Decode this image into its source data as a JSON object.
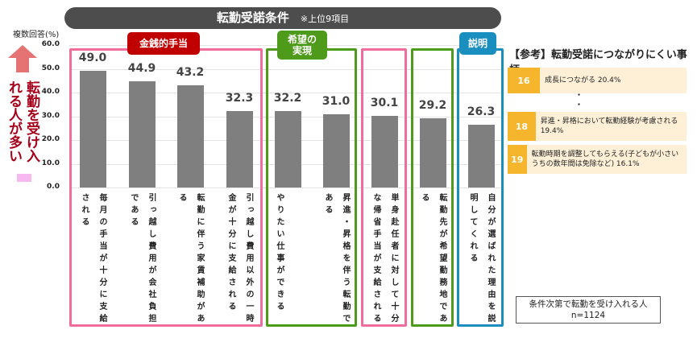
{
  "title": "転勤受諾条件",
  "title_note": "※上位9項目",
  "side_label": "転勤を受け入れる人が多い",
  "groups": [
    {
      "label": "金銭的手当",
      "color": "#c00000",
      "border": "#f06c9a"
    },
    {
      "label": "希望の実現",
      "color": "#4e9a1a",
      "border": "#4e9a1a"
    },
    {
      "label": "説明",
      "color": "#1a8fbf",
      "border": "#1a8fbf"
    }
  ],
  "reference": {
    "title": "【参考】転勤受諾につながりにくい事柄",
    "items": [
      {
        "rank": "16",
        "text": "成長につながる 20.4%"
      },
      {
        "rank": "18",
        "text": "昇進・昇格において転勤経験が考慮される 19.4%"
      },
      {
        "rank": "19",
        "text": "転勤時期を調整してもらえる(子どもが小さいうちの数年間は免除など) 16.1%"
      }
    ],
    "ellipsis": "・ ・ ・"
  },
  "sample": {
    "line1": "条件次第で転勤を受け入れる人",
    "line2": "n=1124"
  },
  "chart_data": {
    "type": "bar",
    "ylabel": "複数回答(%)",
    "ylim": [
      0,
      60
    ],
    "yticks": [
      "0.0",
      "10.0",
      "20.0",
      "30.0",
      "40.0",
      "50.0",
      "60.0"
    ],
    "grid": true,
    "bar_color": "#7f7f7f",
    "categories": [
      "毎月の手当が十分に支給される",
      "引っ越し費用が会社負担である",
      "転勤に伴う家賃補助がある",
      "引っ越し費用以外の一時金が十分に支給される",
      "やりたい仕事ができる",
      "昇進・昇格を伴う転勤である",
      "単身赴任者に対して十分な帰省手当が支給される",
      "転勤先が希望勤務地である",
      "自分が選ばれた理由を説明してくれる"
    ],
    "values": [
      49.0,
      44.9,
      43.2,
      32.3,
      32.2,
      31.0,
      30.1,
      29.2,
      26.3
    ],
    "labels": [
      "49.0",
      "44.9",
      "43.2",
      "32.3",
      "32.2",
      "31.0",
      "30.1",
      "29.2",
      "26.3"
    ]
  }
}
